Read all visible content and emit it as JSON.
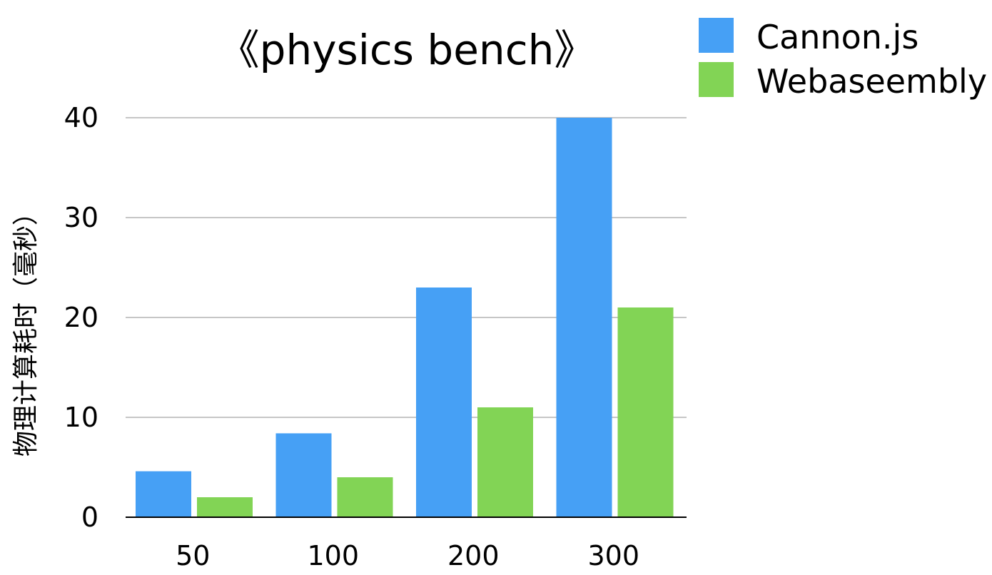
{
  "chart_data": {
    "type": "bar",
    "title": "《physics bench》",
    "xlabel": "",
    "ylabel": "物理计算耗时（毫秒）",
    "categories": [
      "50",
      "100",
      "200",
      "300"
    ],
    "series": [
      {
        "name": "Cannon.js",
        "color": "#46a0f5",
        "values": [
          4.6,
          8.4,
          23,
          40
        ]
      },
      {
        "name": "Webaseembly",
        "color": "#82d455",
        "values": [
          2,
          4,
          11,
          21
        ]
      }
    ],
    "ylim": [
      0,
      40
    ],
    "yticks": [
      0,
      10,
      20,
      30,
      40
    ],
    "grid": true,
    "legend": "top-right"
  }
}
